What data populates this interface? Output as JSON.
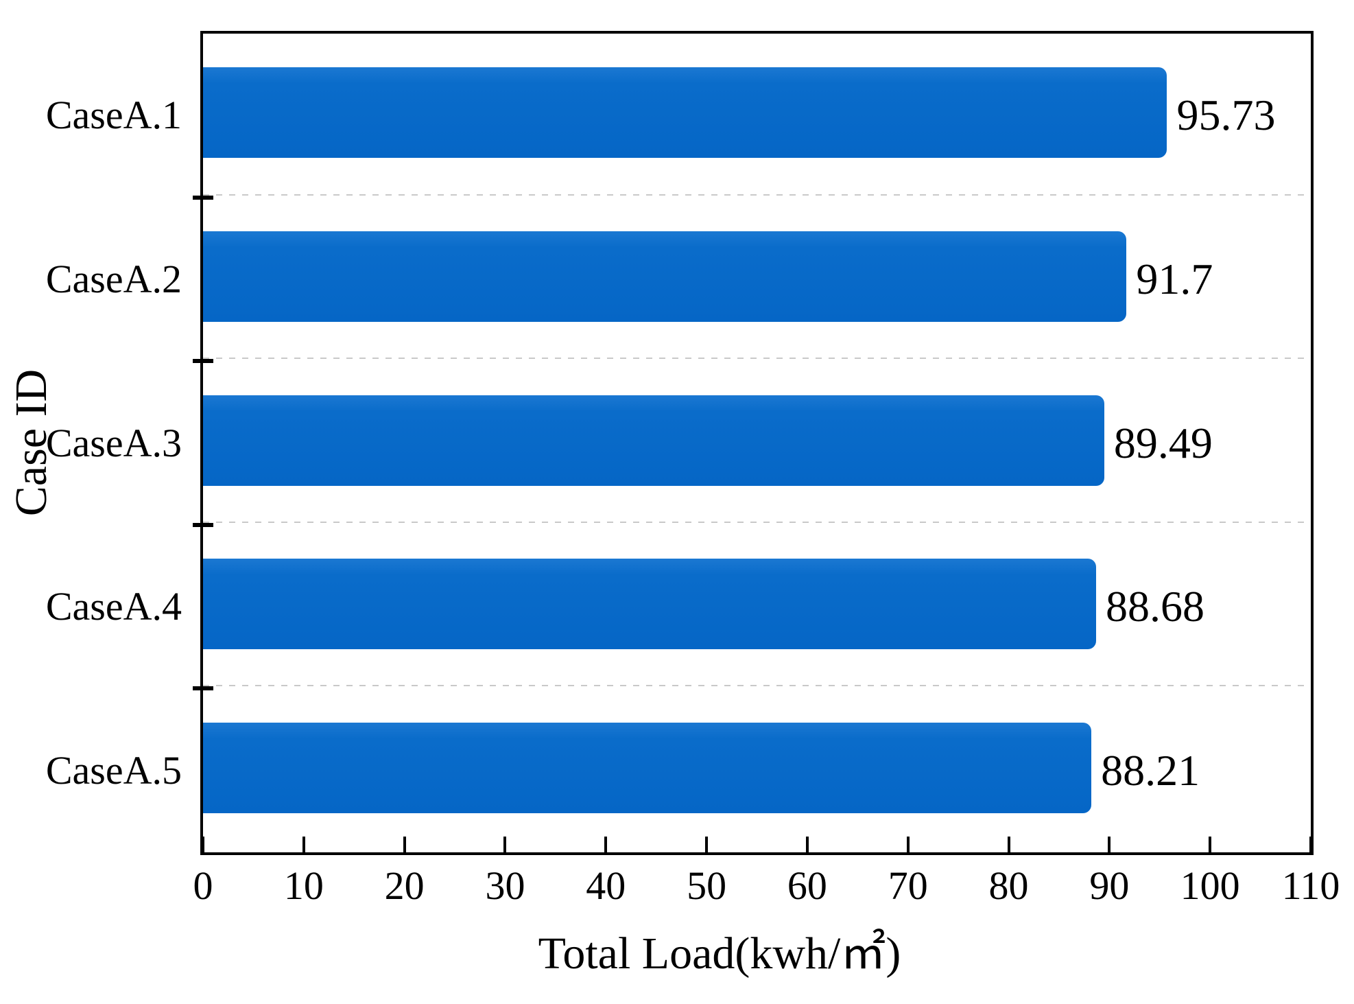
{
  "chart_data": {
    "type": "bar",
    "orientation": "horizontal",
    "title": "",
    "xlabel": "Total Load(kwh/㎡)",
    "ylabel": "Case ID",
    "categories": [
      "CaseA.1",
      "CaseA.2",
      "CaseA.3",
      "CaseA.4",
      "CaseA.5"
    ],
    "values": [
      95.73,
      91.7,
      89.49,
      88.68,
      88.21
    ],
    "value_labels": [
      "95.73",
      "91.7",
      "89.49",
      "88.68",
      "88.21"
    ],
    "xlim": [
      0,
      110
    ],
    "x_ticks": [
      0,
      10,
      20,
      30,
      40,
      50,
      60,
      70,
      80,
      90,
      100,
      110
    ],
    "grid": "dashed horizontal gridlines at category boundaries",
    "legend": "none",
    "colors": {
      "bar": "#0669c8",
      "axis": "#000000",
      "gridline": "#c9c9c9",
      "background": "#ffffff",
      "text": "#000000"
    }
  }
}
